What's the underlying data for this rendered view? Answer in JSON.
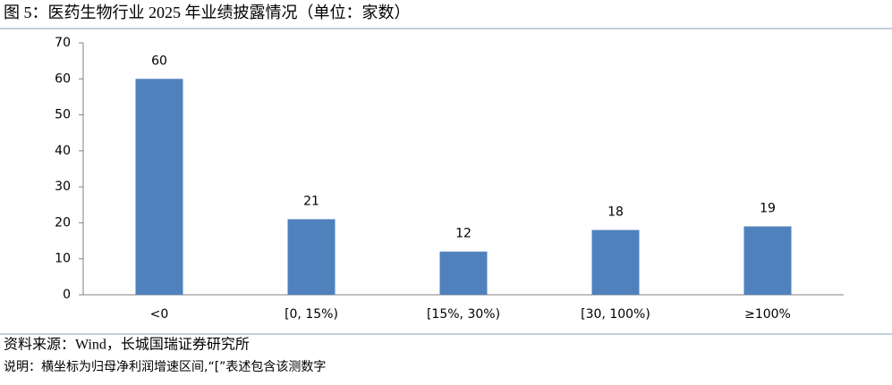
{
  "chart_data": {
    "type": "bar",
    "title": "图 5：医药生物行业 2025 年业绩披露情况（单位：家数）",
    "categories": [
      "<0",
      "[0, 15%)",
      "[15%, 30%)",
      "[30, 100%)",
      "≥100%"
    ],
    "values": [
      60,
      21,
      12,
      18,
      19
    ],
    "color": "#4f81bd",
    "ylim": [
      0,
      70
    ],
    "yticks": [
      0,
      10,
      20,
      30,
      40,
      50,
      60,
      70
    ],
    "grid": false,
    "source": "资料来源：Wind，长城国瑞证券研究所",
    "note": "说明：横坐标为归母净利润增速区间,“[”表述包含该测数字"
  }
}
